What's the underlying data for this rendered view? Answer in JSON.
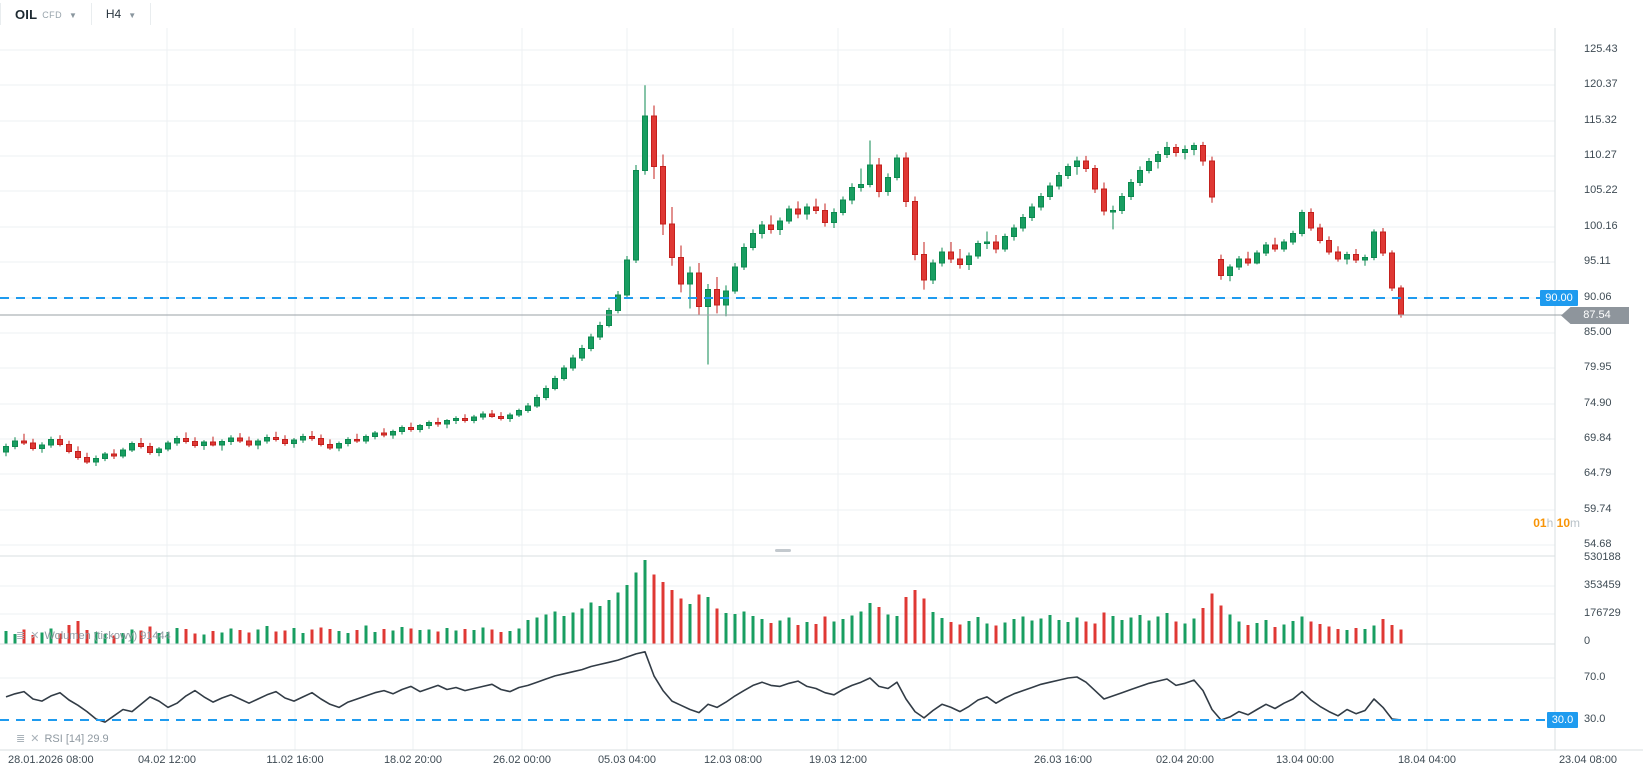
{
  "ui": {
    "topbar": {
      "symbol": "OIL",
      "instrument_type": "CFD",
      "timeframe": "H4"
    },
    "countdown": {
      "h": "01",
      "h_unit": "h",
      "m": "10",
      "m_unit": "m"
    },
    "tags": {
      "level": "90.00",
      "price": "87.54",
      "rsi": "30.0"
    },
    "indicators": {
      "volume_label": "Wolumen (tickowy) 91444",
      "rsi_label": "RSI [14] 29.9"
    }
  },
  "colors": {
    "up": "#189e61",
    "up_border": "#0d8a50",
    "down": "#df3834",
    "down_border": "#c4201d",
    "level_line": "#1e9bef",
    "rsi_line": "#323c46",
    "current_price_line": "#9aa0a6",
    "grid": "#eef1f3",
    "pane_border": "#dadfe2"
  },
  "chart_data": [
    {
      "type": "candlestick",
      "title": "OIL CFD H4",
      "y_ticks": [
        "125.43",
        "120.37",
        "115.32",
        "110.27",
        "105.22",
        "100.16",
        "95.11",
        "90.06",
        "85.00",
        "79.95",
        "74.90",
        "69.84",
        "64.79",
        "59.74",
        "54.68"
      ],
      "x_labels": [
        "28.01.2026 08:00",
        "04.02 12:00",
        "11.02 16:00",
        "18.02 20:00",
        "26.02 00:00",
        "05.03 04:00",
        "12.03 08:00",
        "19.03 12:00",
        "26.03 16:00",
        "02.04 20:00",
        "13.04 00:00",
        "18.04 04:00",
        "23.04 08:00"
      ],
      "level_line": 90.0,
      "current_price": 87.54,
      "ylim": [
        53.5,
        127.0
      ],
      "candles": [
        [
          68.0,
          69.2,
          67.4,
          68.8
        ],
        [
          68.8,
          70.1,
          68.4,
          69.6
        ],
        [
          69.6,
          70.6,
          69.0,
          69.3
        ],
        [
          69.3,
          69.9,
          68.2,
          68.5
        ],
        [
          68.5,
          69.4,
          67.9,
          69.0
        ],
        [
          69.0,
          70.2,
          68.6,
          69.8
        ],
        [
          69.8,
          70.4,
          68.8,
          69.1
        ],
        [
          69.1,
          69.6,
          67.8,
          68.1
        ],
        [
          68.1,
          68.8,
          66.9,
          67.2
        ],
        [
          67.2,
          67.9,
          66.3,
          66.6
        ],
        [
          66.6,
          67.5,
          66.0,
          67.1
        ],
        [
          67.1,
          68.0,
          66.7,
          67.7
        ],
        [
          67.7,
          68.4,
          67.0,
          67.4
        ],
        [
          67.4,
          68.6,
          67.1,
          68.3
        ],
        [
          68.3,
          69.5,
          68.0,
          69.2
        ],
        [
          69.2,
          70.0,
          68.5,
          68.8
        ],
        [
          68.8,
          69.3,
          67.6,
          67.9
        ],
        [
          67.9,
          68.7,
          67.4,
          68.4
        ],
        [
          68.4,
          69.6,
          68.1,
          69.3
        ],
        [
          69.3,
          70.3,
          68.9,
          69.9
        ],
        [
          69.9,
          70.8,
          69.2,
          69.5
        ],
        [
          69.5,
          70.1,
          68.6,
          68.9
        ],
        [
          68.9,
          69.7,
          68.3,
          69.4
        ],
        [
          69.4,
          70.2,
          68.8,
          69.0
        ],
        [
          69.0,
          69.8,
          68.2,
          69.5
        ],
        [
          69.5,
          70.4,
          69.0,
          70.0
        ],
        [
          70.0,
          70.7,
          69.3,
          69.6
        ],
        [
          69.6,
          70.2,
          68.7,
          69.0
        ],
        [
          69.0,
          69.9,
          68.4,
          69.6
        ],
        [
          69.6,
          70.5,
          69.2,
          70.1
        ],
        [
          70.1,
          70.9,
          69.5,
          69.8
        ],
        [
          69.8,
          70.4,
          68.9,
          69.2
        ],
        [
          69.2,
          70.0,
          68.6,
          69.7
        ],
        [
          69.7,
          70.6,
          69.3,
          70.2
        ],
        [
          70.2,
          71.0,
          69.6,
          69.9
        ],
        [
          69.9,
          70.5,
          68.8,
          69.1
        ],
        [
          69.1,
          69.8,
          68.3,
          68.6
        ],
        [
          68.6,
          69.5,
          68.1,
          69.2
        ],
        [
          69.2,
          70.1,
          68.8,
          69.8
        ],
        [
          69.8,
          70.6,
          69.3,
          69.6
        ],
        [
          69.6,
          70.5,
          69.2,
          70.2
        ],
        [
          70.2,
          71.0,
          69.8,
          70.7
        ],
        [
          70.7,
          71.4,
          70.1,
          70.4
        ],
        [
          70.4,
          71.2,
          69.9,
          70.9
        ],
        [
          70.9,
          71.8,
          70.5,
          71.5
        ],
        [
          71.5,
          72.2,
          70.9,
          71.2
        ],
        [
          71.2,
          72.0,
          70.8,
          71.8
        ],
        [
          71.8,
          72.5,
          71.3,
          72.2
        ],
        [
          72.2,
          72.9,
          71.6,
          72.0
        ],
        [
          72.0,
          72.7,
          71.4,
          72.5
        ],
        [
          72.5,
          73.1,
          72.0,
          72.8
        ],
        [
          72.8,
          73.4,
          72.2,
          72.5
        ],
        [
          72.5,
          73.3,
          72.1,
          73.0
        ],
        [
          73.0,
          73.8,
          72.6,
          73.4
        ],
        [
          73.4,
          74.0,
          72.9,
          73.1
        ],
        [
          73.1,
          73.7,
          72.5,
          72.8
        ],
        [
          72.8,
          73.6,
          72.3,
          73.3
        ],
        [
          73.3,
          74.2,
          73.0,
          73.9
        ],
        [
          73.9,
          75.0,
          73.6,
          74.6
        ],
        [
          74.6,
          76.2,
          74.3,
          75.8
        ],
        [
          75.8,
          77.5,
          75.4,
          77.1
        ],
        [
          77.1,
          78.9,
          76.8,
          78.5
        ],
        [
          78.5,
          80.4,
          78.2,
          80.0
        ],
        [
          80.0,
          81.9,
          79.6,
          81.4
        ],
        [
          81.4,
          83.3,
          81.0,
          82.8
        ],
        [
          82.8,
          84.9,
          82.4,
          84.4
        ],
        [
          84.4,
          86.6,
          84.0,
          86.1
        ],
        [
          86.1,
          88.6,
          85.8,
          88.2
        ],
        [
          88.2,
          91.0,
          87.8,
          90.4
        ],
        [
          90.4,
          96.0,
          90.0,
          95.4
        ],
        [
          95.4,
          109.0,
          95.0,
          108.2
        ],
        [
          108.2,
          120.4,
          107.6,
          116.0
        ],
        [
          116.0,
          117.5,
          107.0,
          108.8
        ],
        [
          108.8,
          110.5,
          99.0,
          100.6
        ],
        [
          100.6,
          103.0,
          94.6,
          95.8
        ],
        [
          95.8,
          97.5,
          90.8,
          92.0
        ],
        [
          92.0,
          94.5,
          88.5,
          93.6
        ],
        [
          93.6,
          95.0,
          87.6,
          88.8
        ],
        [
          88.8,
          92.0,
          80.5,
          91.2
        ],
        [
          91.2,
          93.0,
          87.8,
          89.0
        ],
        [
          89.0,
          91.8,
          87.4,
          91.0
        ],
        [
          91.0,
          95.0,
          90.6,
          94.4
        ],
        [
          94.4,
          97.8,
          94.0,
          97.2
        ],
        [
          97.2,
          99.8,
          96.8,
          99.2
        ],
        [
          99.2,
          101.0,
          98.5,
          100.4
        ],
        [
          100.4,
          101.8,
          99.2,
          99.8
        ],
        [
          99.8,
          101.5,
          99.0,
          101.0
        ],
        [
          101.0,
          103.2,
          100.6,
          102.7
        ],
        [
          102.7,
          103.8,
          101.4,
          102.0
        ],
        [
          102.0,
          103.5,
          101.2,
          103.0
        ],
        [
          103.0,
          104.2,
          102.0,
          102.5
        ],
        [
          102.5,
          103.5,
          100.2,
          100.8
        ],
        [
          100.8,
          102.8,
          100.0,
          102.2
        ],
        [
          102.2,
          104.5,
          101.8,
          104.0
        ],
        [
          104.0,
          106.4,
          103.4,
          105.8
        ],
        [
          105.8,
          108.5,
          105.2,
          106.2
        ],
        [
          106.2,
          112.5,
          105.8,
          109.0
        ],
        [
          109.0,
          110.0,
          104.4,
          105.2
        ],
        [
          105.2,
          107.8,
          104.6,
          107.2
        ],
        [
          107.2,
          110.5,
          106.8,
          110.0
        ],
        [
          110.0,
          110.8,
          103.0,
          103.8
        ],
        [
          103.8,
          104.5,
          95.4,
          96.2
        ],
        [
          96.2,
          98.0,
          91.2,
          92.6
        ],
        [
          92.6,
          95.5,
          92.0,
          95.0
        ],
        [
          95.0,
          97.2,
          94.5,
          96.6
        ],
        [
          96.6,
          98.0,
          95.0,
          95.6
        ],
        [
          95.6,
          97.0,
          94.2,
          94.8
        ],
        [
          94.8,
          96.5,
          94.0,
          96.0
        ],
        [
          96.0,
          98.2,
          95.6,
          97.8
        ],
        [
          97.8,
          99.5,
          97.0,
          98.0
        ],
        [
          98.0,
          99.0,
          96.4,
          97.0
        ],
        [
          97.0,
          99.2,
          96.6,
          98.8
        ],
        [
          98.8,
          100.5,
          98.2,
          100.0
        ],
        [
          100.0,
          102.0,
          99.5,
          101.5
        ],
        [
          101.5,
          103.5,
          101.0,
          103.0
        ],
        [
          103.0,
          105.0,
          102.5,
          104.5
        ],
        [
          104.5,
          106.5,
          104.0,
          106.0
        ],
        [
          106.0,
          108.0,
          105.5,
          107.5
        ],
        [
          107.5,
          109.2,
          107.0,
          108.8
        ],
        [
          108.8,
          110.2,
          107.6,
          109.6
        ],
        [
          109.6,
          110.3,
          108.0,
          108.5
        ],
        [
          108.5,
          109.0,
          105.0,
          105.6
        ],
        [
          105.6,
          106.5,
          101.8,
          102.4
        ],
        [
          102.4,
          103.2,
          99.8,
          102.5
        ],
        [
          102.5,
          105.0,
          102.0,
          104.5
        ],
        [
          104.5,
          107.0,
          104.0,
          106.5
        ],
        [
          106.5,
          108.8,
          106.0,
          108.2
        ],
        [
          108.2,
          110.0,
          107.8,
          109.5
        ],
        [
          109.5,
          111.0,
          108.5,
          110.5
        ],
        [
          110.5,
          112.3,
          110.0,
          111.5
        ],
        [
          111.5,
          112.0,
          110.2,
          110.8
        ],
        [
          110.8,
          111.8,
          109.8,
          111.2
        ],
        [
          111.2,
          112.2,
          110.4,
          111.8
        ],
        [
          111.8,
          112.3,
          108.9,
          109.6
        ],
        [
          109.6,
          110.2,
          103.6,
          104.4
        ],
        [
          95.5,
          96.2,
          92.6,
          93.2
        ],
        [
          93.2,
          94.8,
          92.4,
          94.4
        ],
        [
          94.4,
          96.0,
          94.0,
          95.6
        ],
        [
          95.6,
          96.6,
          94.6,
          95.0
        ],
        [
          95.0,
          96.8,
          94.8,
          96.4
        ],
        [
          96.4,
          98.0,
          96.0,
          97.6
        ],
        [
          97.6,
          98.6,
          96.6,
          97.0
        ],
        [
          97.0,
          98.4,
          96.6,
          98.0
        ],
        [
          98.0,
          99.6,
          97.6,
          99.2
        ],
        [
          99.2,
          102.6,
          98.8,
          102.2
        ],
        [
          102.2,
          102.8,
          99.6,
          100.0
        ],
        [
          100.0,
          100.6,
          97.8,
          98.2
        ],
        [
          98.2,
          98.8,
          96.2,
          96.6
        ],
        [
          96.6,
          97.4,
          95.2,
          95.6
        ],
        [
          95.6,
          96.6,
          94.8,
          96.2
        ],
        [
          96.2,
          97.0,
          95.0,
          95.4
        ],
        [
          95.4,
          96.2,
          94.6,
          95.8
        ],
        [
          95.8,
          99.8,
          95.4,
          99.4
        ],
        [
          99.4,
          100.0,
          96.0,
          96.4
        ],
        [
          96.4,
          96.8,
          91.0,
          91.4
        ],
        [
          91.4,
          91.8,
          87.2,
          87.54
        ]
      ]
    },
    {
      "type": "bar",
      "name": "Wolumen (tickowy)",
      "last_value": 91444,
      "y_ticks": [
        "530188",
        "353459",
        "176729",
        "0"
      ],
      "ymax": 530188,
      "values": [
        82000,
        64000,
        91000,
        58000,
        73000,
        99000,
        67000,
        120000,
        145000,
        88000,
        76000,
        62000,
        54000,
        71000,
        93000,
        84000,
        110000,
        69000,
        77000,
        102000,
        95000,
        66000,
        59000,
        81000,
        74000,
        98000,
        87000,
        72000,
        90000,
        113000,
        79000,
        85000,
        101000,
        68000,
        92000,
        105000,
        96000,
        83000,
        70000,
        88000,
        117000,
        75000,
        94000,
        86000,
        108000,
        98000,
        87000,
        92000,
        79000,
        101000,
        85000,
        96000,
        88000,
        104000,
        92000,
        76000,
        83000,
        97000,
        152000,
        168000,
        185000,
        205000,
        177000,
        198000,
        224000,
        262000,
        241000,
        278000,
        325000,
        372000,
        452000,
        530188,
        438000,
        390000,
        341000,
        288000,
        252000,
        311000,
        298000,
        224000,
        196000,
        188000,
        205000,
        177000,
        158000,
        132000,
        149000,
        166000,
        121000,
        139000,
        127000,
        173000,
        142000,
        157000,
        181000,
        204000,
        259000,
        232000,
        187000,
        176000,
        297000,
        341000,
        286000,
        201000,
        164000,
        138000,
        122000,
        146000,
        171000,
        129000,
        117000,
        135000,
        158000,
        172000,
        147000,
        161000,
        183000,
        152000,
        139000,
        166000,
        143000,
        128000,
        198000,
        176000,
        151000,
        167000,
        182000,
        148000,
        173000,
        196000,
        142000,
        129000,
        161000,
        227000,
        318000,
        243000,
        187000,
        141000,
        119000,
        133000,
        152000,
        108000,
        124000,
        146000,
        174000,
        142000,
        126000,
        109000,
        95000,
        88000,
        102000,
        96000,
        118000,
        157000,
        121000,
        91444
      ]
    },
    {
      "type": "line",
      "name": "RSI [14]",
      "last_value": 29.9,
      "y_ticks": [
        "70.0",
        "30.0"
      ],
      "level_line": 30.0,
      "values": [
        52,
        55,
        57,
        50,
        48,
        53,
        56,
        49,
        44,
        38,
        31,
        28,
        34,
        40,
        38,
        45,
        52,
        48,
        42,
        46,
        53,
        58,
        52,
        47,
        51,
        54,
        50,
        46,
        50,
        54,
        57,
        51,
        48,
        52,
        56,
        50,
        45,
        42,
        47,
        50,
        53,
        56,
        58,
        55,
        59,
        62,
        57,
        60,
        63,
        59,
        61,
        58,
        60,
        62,
        64,
        59,
        57,
        61,
        63,
        66,
        69,
        72,
        74,
        76,
        78,
        81,
        83,
        85,
        87,
        90,
        93,
        95,
        72,
        58,
        48,
        44,
        40,
        37,
        45,
        42,
        47,
        53,
        58,
        63,
        66,
        63,
        62,
        65,
        67,
        62,
        60,
        56,
        54,
        59,
        63,
        66,
        70,
        62,
        60,
        66,
        50,
        38,
        32,
        39,
        45,
        42,
        38,
        43,
        49,
        52,
        46,
        51,
        55,
        58,
        61,
        64,
        66,
        68,
        70,
        71,
        66,
        58,
        50,
        53,
        56,
        59,
        62,
        65,
        67,
        69,
        63,
        65,
        68,
        58,
        40,
        30,
        33,
        38,
        35,
        40,
        45,
        41,
        46,
        50,
        57,
        49,
        43,
        38,
        34,
        40,
        36,
        39,
        50,
        42,
        31,
        29.9
      ]
    }
  ]
}
